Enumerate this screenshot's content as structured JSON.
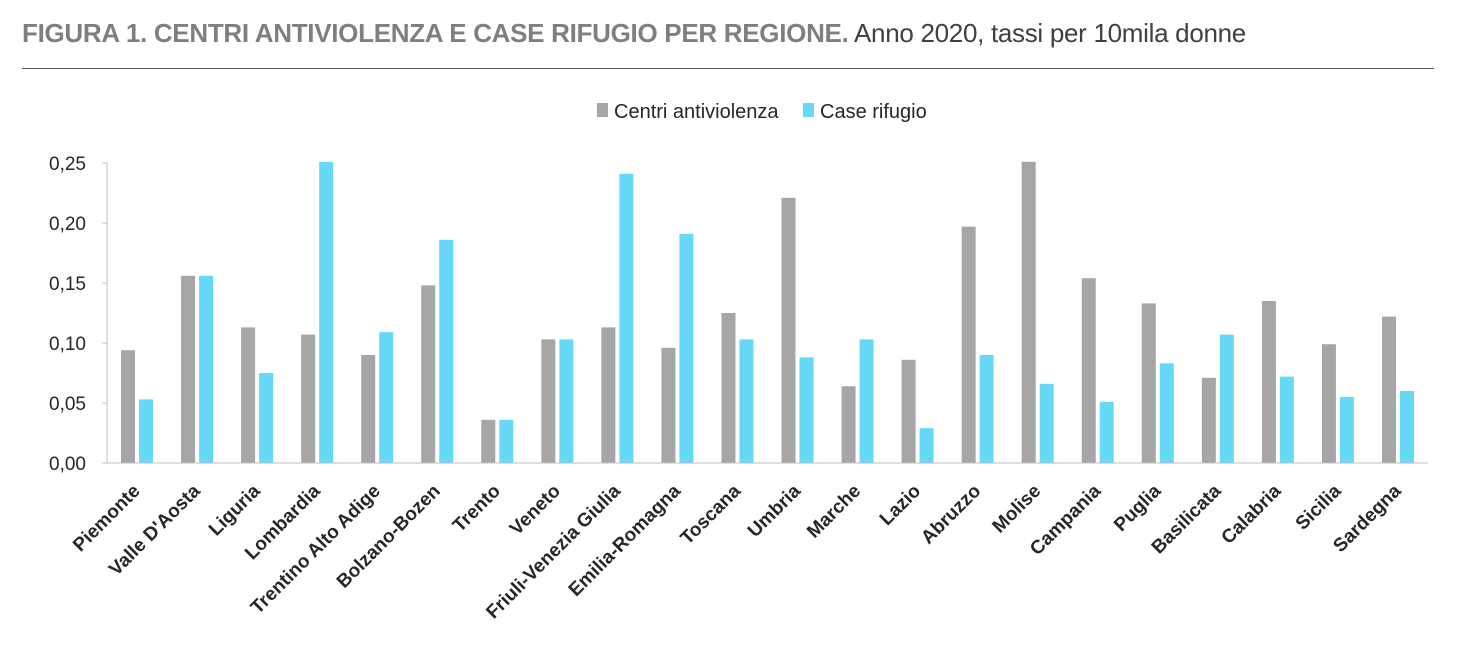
{
  "header": {
    "title_lead": "FIGURA 1. CENTRI ANTIVIOLENZA E CASE RIFUGIO PER REGIONE.",
    "title_rest": " Anno 2020, tassi per 10mila donne"
  },
  "chart_data": {
    "type": "bar",
    "title": "FIGURA 1. CENTRI ANTIVIOLENZA E CASE RIFUGIO PER REGIONE. Anno 2020, tassi per 10mila donne",
    "xlabel": "",
    "ylabel": "",
    "ylim": [
      0,
      0.25
    ],
    "yticks": [
      "0,00",
      "0,05",
      "0,10",
      "0,15",
      "0,20",
      "0,25"
    ],
    "legend_position": "top-center",
    "grid": false,
    "categories": [
      "Piemonte",
      "Valle D'Aosta",
      "Liguria",
      "Lombardia",
      "Trentino Alto Adige",
      "Bolzano-Bozen",
      "Trento",
      "Veneto",
      "Friuli-Venezia Giulia",
      "Emilia-Romagna",
      "Toscana",
      "Umbria",
      "Marche",
      "Lazio",
      "Abruzzo",
      "Molise",
      "Campania",
      "Puglia",
      "Basilicata",
      "Calabria",
      "Sicilia",
      "Sardegna"
    ],
    "series": [
      {
        "name": "Centri antiviolenza",
        "color": "#a6a6a6",
        "values": [
          0.094,
          0.156,
          0.113,
          0.107,
          0.09,
          0.148,
          0.036,
          0.103,
          0.113,
          0.096,
          0.125,
          0.221,
          0.064,
          0.086,
          0.197,
          0.251,
          0.154,
          0.133,
          0.071,
          0.135,
          0.099,
          0.122
        ]
      },
      {
        "name": "Case rifugio",
        "color": "#66d9f7",
        "values": [
          0.053,
          0.156,
          0.075,
          0.251,
          0.109,
          0.186,
          0.036,
          0.103,
          0.241,
          0.191,
          0.103,
          0.088,
          0.103,
          0.029,
          0.09,
          0.066,
          0.051,
          0.083,
          0.107,
          0.072,
          0.055,
          0.06
        ]
      }
    ]
  }
}
